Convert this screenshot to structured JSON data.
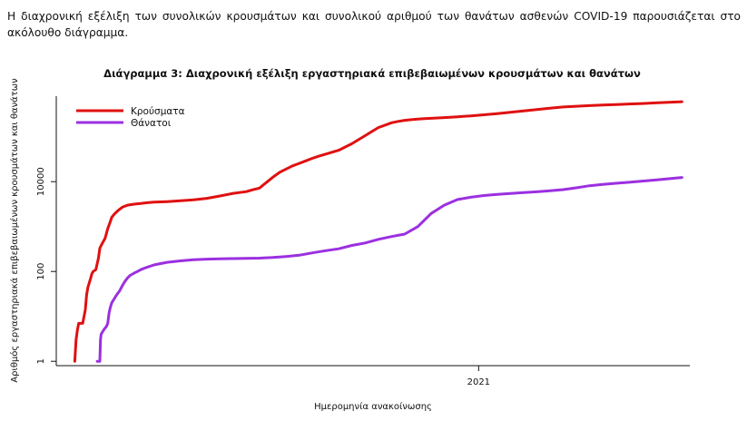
{
  "intro_text": "Η διαχρονική εξέλιξη των συνολικών κρουσμάτων και συνολικού αριθμού των θανάτων ασθενών COVID-19 παρουσιάζεται στο ακόλουθο διάγραμμα.",
  "chart_data": {
    "type": "line",
    "title": "Διάγραμμα 3: Διαχρονική εξέλιξη εργαστηριακά επιβεβαιωμένων κρουσμάτων και θανάτων",
    "xlabel": "Ημερομηνία ανακοίνωσης",
    "ylabel": "Αριθμός εργαστηριακά επιβεβαιωμένων κρουσμάτων και θανάτων",
    "y_scale": "log",
    "ylim": [
      0.8,
      800000
    ],
    "y_ticks": [
      1,
      100,
      10000
    ],
    "y_tick_labels": [
      "1",
      "100",
      "10000"
    ],
    "xlim": [
      -14,
      466
    ],
    "x_ticks": [
      306
    ],
    "x_tick_labels": [
      "2021"
    ],
    "legend_position": "top-left",
    "series": [
      {
        "name": "Κρούσματα",
        "color": "#e01010",
        "x": [
          0,
          1,
          2,
          3,
          4,
          6,
          8,
          9,
          10,
          12,
          13,
          14,
          16,
          18,
          19,
          21,
          23,
          25,
          27,
          28,
          30,
          33,
          36,
          40,
          45,
          50,
          55,
          60,
          70,
          80,
          90,
          100,
          110,
          120,
          130,
          135,
          140,
          145,
          150,
          155,
          160,
          165,
          170,
          175,
          180,
          185,
          190,
          200,
          210,
          220,
          230,
          240,
          245,
          250,
          255,
          260,
          265,
          270,
          275,
          280,
          290,
          300,
          310,
          320,
          330,
          340,
          350,
          360,
          370,
          380,
          390,
          400,
          410,
          420,
          430,
          440,
          450,
          460
        ],
        "values": [
          1,
          3,
          5,
          7,
          7,
          7,
          14,
          30,
          45,
          70,
          90,
          100,
          110,
          200,
          330,
          430,
          550,
          900,
          1300,
          1600,
          1900,
          2300,
          2700,
          3000,
          3150,
          3280,
          3400,
          3500,
          3600,
          3750,
          3950,
          4250,
          4800,
          5500,
          6000,
          6600,
          7200,
          9500,
          12500,
          16000,
          19000,
          22500,
          25500,
          29000,
          33000,
          37000,
          41000,
          50000,
          70000,
          106000,
          160000,
          205000,
          220000,
          232000,
          240000,
          247000,
          252000,
          257000,
          262000,
          267000,
          278000,
          292000,
          308000,
          328000,
          350000,
          375000,
          403000,
          433000,
          460000,
          478000,
          493000,
          508000,
          522000,
          536000,
          550000,
          566000,
          584000,
          602000
        ]
      },
      {
        "name": "Θάνατοι",
        "color": "#9b30e0",
        "x": [
          17,
          18,
          19,
          19.5,
          20,
          22,
          24,
          25,
          26,
          27,
          28,
          30,
          32,
          34,
          36,
          38,
          40,
          42,
          45,
          48,
          50,
          55,
          60,
          65,
          70,
          80,
          90,
          100,
          110,
          120,
          130,
          140,
          150,
          160,
          170,
          180,
          190,
          200,
          210,
          220,
          230,
          240,
          250,
          260,
          270,
          280,
          290,
          300,
          310,
          320,
          330,
          340,
          350,
          360,
          370,
          380,
          390,
          400,
          410,
          420,
          430,
          440,
          450,
          460
        ],
        "values": [
          1,
          1,
          1,
          3,
          4,
          5,
          6,
          7,
          12,
          16,
          20,
          25,
          31,
          37,
          48,
          60,
          72,
          82,
          92,
          102,
          110,
          125,
          140,
          150,
          160,
          172,
          182,
          188,
          192,
          194,
          196,
          198,
          205,
          215,
          230,
          260,
          290,
          320,
          380,
          430,
          520,
          600,
          680,
          1000,
          1950,
          3000,
          4000,
          4500,
          4900,
          5200,
          5450,
          5700,
          5950,
          6250,
          6650,
          7300,
          8100,
          8700,
          9200,
          9700,
          10300,
          10900,
          11600,
          12400
        ]
      }
    ]
  }
}
